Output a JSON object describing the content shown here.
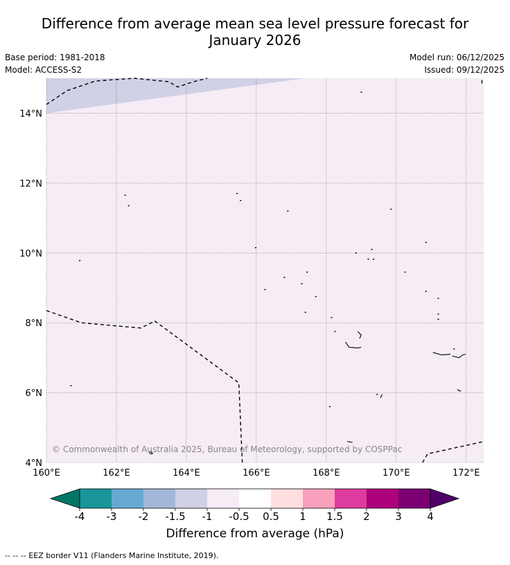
{
  "title_line1": "Difference from average mean sea level pressure forecast for",
  "title_line2": "January 2026",
  "base_period": "Base period: 1981-2018",
  "model": "Model: ACCESS-S2",
  "model_run": "Model run: 06/12/2025",
  "issued": "Issued: 09/12/2025",
  "copyright": "© Commonwealth of Australia 2025, Bureau of Meteorology, supported by COSPPac",
  "map": {
    "lon_labels": [
      "160°E",
      "162°E",
      "164°E",
      "166°E",
      "168°E",
      "170°E",
      "172°E"
    ],
    "lat_labels": [
      "14°N",
      "12°N",
      "10°N",
      "8°N",
      "6°N",
      "4°N"
    ],
    "extent": {
      "lon_min": 160,
      "lon_max": 172.5,
      "lat_min": 4,
      "lat_max": 15
    },
    "fill_colors": {
      "base": "#f5ecf5",
      "band_minus1": "#d0d0e6"
    },
    "eez_segments": [
      [
        [
          160,
          8.35
        ],
        [
          161,
          8.0
        ],
        [
          162.7,
          7.85
        ],
        [
          163.1,
          8.05
        ],
        [
          165.5,
          6.28
        ],
        [
          165.6,
          4.0
        ]
      ],
      [
        [
          160,
          14.25
        ],
        [
          160.6,
          14.65
        ],
        [
          161.4,
          14.92
        ],
        [
          162.5,
          15.0
        ]
      ],
      [
        [
          162.5,
          15.0
        ],
        [
          163.5,
          14.9
        ],
        [
          163.75,
          14.75
        ],
        [
          164.2,
          14.9
        ],
        [
          164.6,
          15.0
        ]
      ],
      [
        [
          170.75,
          4.0
        ],
        [
          170.9,
          4.25
        ],
        [
          172.5,
          4.6
        ]
      ],
      [
        [
          172.45,
          14.85
        ],
        [
          172.45,
          15.0
        ]
      ]
    ],
    "islands": [
      [
        160.95,
        9.78
      ],
      [
        160.7,
        6.2
      ],
      [
        162.25,
        11.65
      ],
      [
        162.35,
        11.35
      ],
      [
        165.45,
        11.7
      ],
      [
        165.55,
        11.5
      ],
      [
        165.98,
        10.15
      ],
      [
        166.9,
        11.2
      ],
      [
        166.25,
        8.95
      ],
      [
        166.8,
        9.3
      ],
      [
        167.3,
        9.12
      ],
      [
        167.45,
        9.45
      ],
      [
        167.7,
        8.75
      ],
      [
        167.4,
        8.3
      ],
      [
        168.15,
        8.15
      ],
      [
        168.25,
        7.75
      ],
      [
        168.85,
        10.0
      ],
      [
        169.3,
        10.1
      ],
      [
        169.2,
        9.82
      ],
      [
        169.35,
        9.82
      ],
      [
        169.85,
        11.25
      ],
      [
        170.25,
        9.45
      ],
      [
        170.85,
        10.3
      ],
      [
        170.85,
        8.9
      ],
      [
        171.2,
        8.7
      ],
      [
        171.2,
        8.25
      ],
      [
        171.2,
        8.1
      ],
      [
        171.65,
        7.25
      ],
      [
        169.45,
        5.95
      ],
      [
        168.1,
        5.6
      ],
      [
        169.0,
        14.6
      ],
      [
        162.98,
        4.3
      ]
    ],
    "atoll_paths": [
      [
        [
          168.55,
          7.45
        ],
        [
          168.65,
          7.3
        ],
        [
          168.9,
          7.28
        ],
        [
          169.0,
          7.3
        ]
      ],
      [
        [
          168.95,
          7.55
        ],
        [
          169.0,
          7.65
        ],
        [
          168.9,
          7.75
        ]
      ],
      [
        [
          171.05,
          7.15
        ],
        [
          171.3,
          7.08
        ],
        [
          171.55,
          7.1
        ]
      ],
      [
        [
          171.6,
          7.05
        ],
        [
          171.8,
          7.0
        ],
        [
          171.9,
          7.08
        ],
        [
          171.98,
          7.1
        ]
      ],
      [
        [
          169.55,
          5.85
        ],
        [
          169.6,
          5.95
        ]
      ],
      [
        [
          171.75,
          6.1
        ],
        [
          171.8,
          6.05
        ],
        [
          171.85,
          6.05
        ]
      ],
      [
        [
          168.6,
          4.6
        ],
        [
          168.75,
          4.58
        ]
      ],
      [
        [
          162.93,
          4.28
        ],
        [
          163.0,
          4.32
        ],
        [
          163.03,
          4.25
        ],
        [
          162.95,
          4.25
        ]
      ]
    ]
  },
  "colorbar": {
    "colors": [
      "#007665",
      "#1a9599",
      "#66aad4",
      "#a3b8d9",
      "#d0d0e6",
      "#f5ecf5",
      "#ffffff",
      "#ffdfe0",
      "#f9a0bc",
      "#dd3c9e",
      "#ad0279",
      "#7c0074",
      "#4f0068"
    ],
    "tick_labels": [
      "-4",
      "-3",
      "-2",
      "-1.5",
      "-1",
      "-0.5",
      "0.5",
      "1",
      "1.5",
      "2",
      "3",
      "4"
    ],
    "title": "Difference from average (hPa)"
  },
  "footnote": "-- -- -- EEZ border V11 (Flanders Marine Institute, 2019)."
}
